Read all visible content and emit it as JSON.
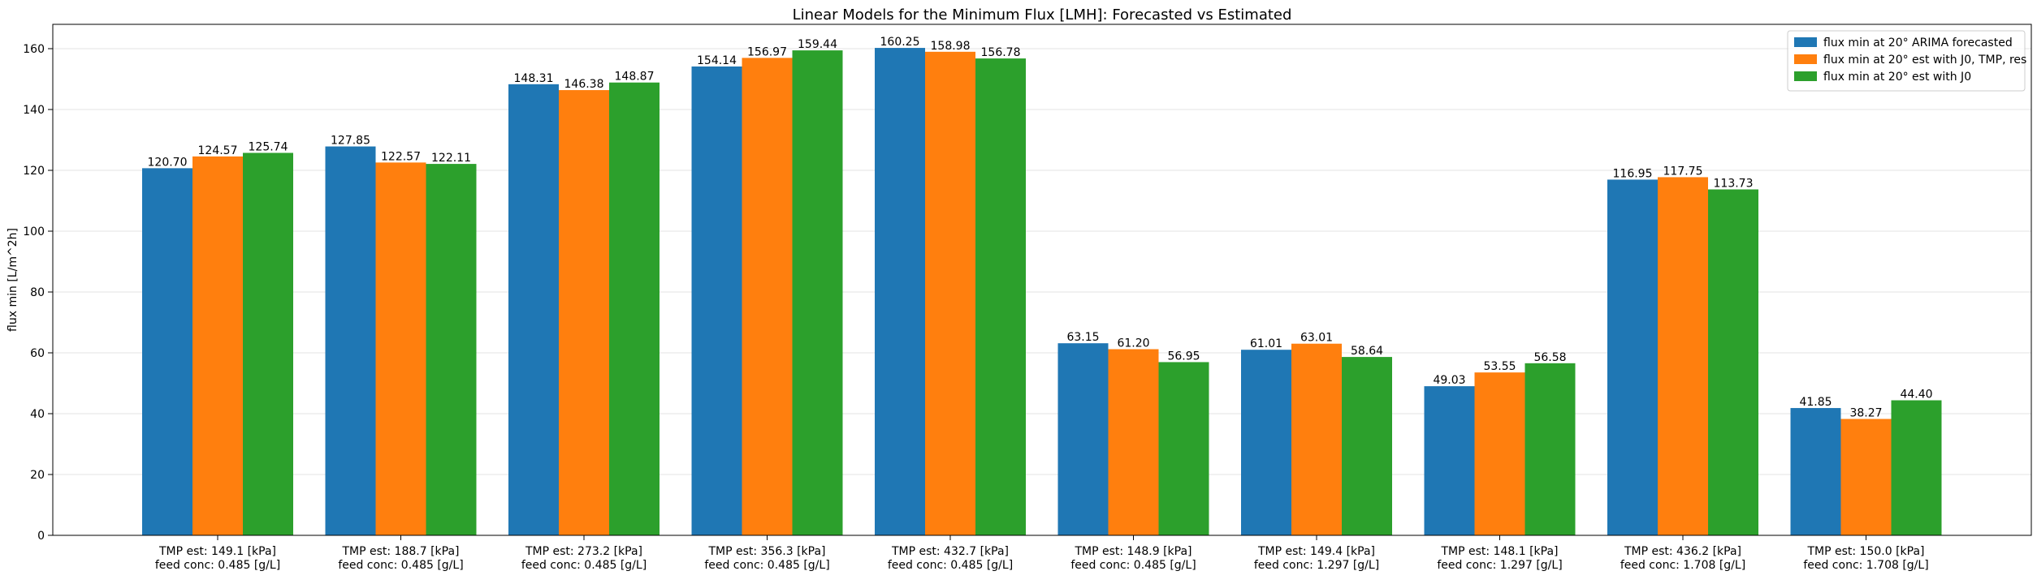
{
  "chart_data": {
    "type": "bar",
    "title": "Linear Models for the Minimum Flux [LMH]: Forecasted vs Estimated",
    "xlabel": "",
    "ylabel": "flux min [L/m^2h]",
    "ylim": [
      0,
      168
    ],
    "yticks": [
      0,
      20,
      40,
      60,
      80,
      100,
      120,
      140,
      160
    ],
    "grid": "horizontal",
    "legend_position": "top-right",
    "categories": [
      [
        "TMP est: 149.1 [kPa]",
        "feed conc: 0.485 [g/L]"
      ],
      [
        "TMP est: 188.7 [kPa]",
        "feed conc: 0.485 [g/L]"
      ],
      [
        "TMP est: 273.2 [kPa]",
        "feed conc: 0.485 [g/L]"
      ],
      [
        "TMP est: 356.3 [kPa]",
        "feed conc: 0.485 [g/L]"
      ],
      [
        "TMP est: 432.7 [kPa]",
        "feed conc: 0.485 [g/L]"
      ],
      [
        "TMP est: 148.9 [kPa]",
        "feed conc: 0.485 [g/L]"
      ],
      [
        "TMP est: 149.4 [kPa]",
        "feed conc: 1.297 [g/L]"
      ],
      [
        "TMP est: 148.1 [kPa]",
        "feed conc: 1.297 [g/L]"
      ],
      [
        "TMP est: 436.2 [kPa]",
        "feed conc: 1.708 [g/L]"
      ],
      [
        "TMP est: 150.0 [kPa]",
        "feed conc: 1.708 [g/L]"
      ]
    ],
    "series": [
      {
        "name": "flux min at 20° ARIMA forecasted",
        "color": "#1f77b4",
        "values": [
          120.7,
          127.85,
          148.31,
          154.14,
          160.25,
          63.15,
          61.01,
          49.03,
          116.95,
          41.85
        ],
        "labels": [
          "120.70",
          "127.85",
          "148.31",
          "154.14",
          "160.25",
          "63.15",
          "61.01",
          "49.03",
          "116.95",
          "41.85"
        ]
      },
      {
        "name": "flux min at 20° est with J0, TMP, res",
        "color": "#ff7f0e",
        "values": [
          124.57,
          122.57,
          146.38,
          156.97,
          158.98,
          61.2,
          63.01,
          53.55,
          117.75,
          38.27
        ],
        "labels": [
          "124.57",
          "122.57",
          "146.38",
          "156.97",
          "158.98",
          "61.20",
          "63.01",
          "53.55",
          "117.75",
          "38.27"
        ]
      },
      {
        "name": "flux min at 20° est with J0",
        "color": "#2ca02c",
        "values": [
          125.74,
          122.11,
          148.87,
          159.44,
          156.78,
          56.95,
          58.64,
          56.58,
          113.73,
          44.4
        ],
        "labels": [
          "125.74",
          "122.11",
          "148.87",
          "159.44",
          "156.78",
          "56.95",
          "58.64",
          "56.58",
          "113.73",
          "44.40"
        ]
      }
    ]
  }
}
